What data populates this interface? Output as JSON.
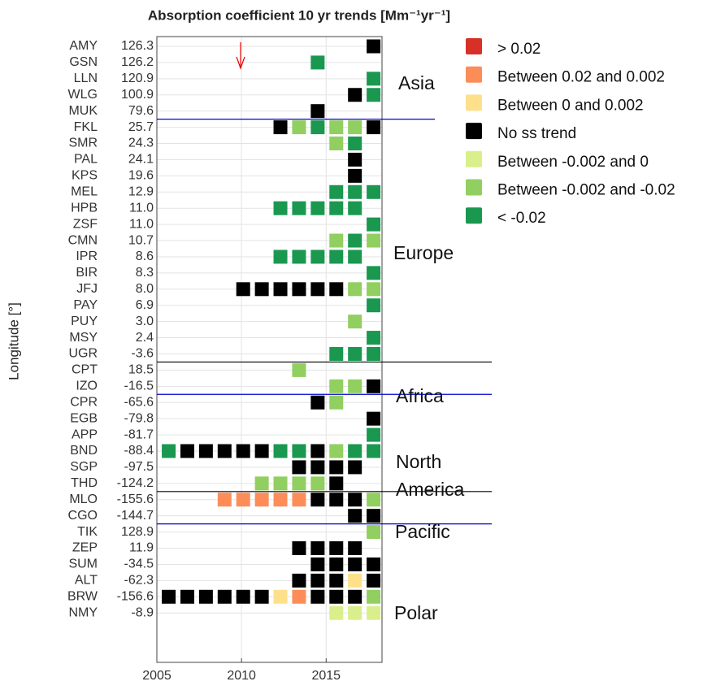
{
  "chart_data": {
    "type": "heatmap",
    "title": "Absorption coefficient 10 yr trends [Mm⁻¹yr⁻¹]",
    "ylabel": "Longitude [°]",
    "x": [
      2005.7,
      2006.8,
      2007.9,
      2009.0,
      2010.1,
      2011.2,
      2012.3,
      2013.4,
      2014.5,
      2015.6,
      2016.7,
      2017.8
    ],
    "xlim": [
      2005,
      2018.3
    ],
    "xticks": [
      2005,
      2010,
      2015
    ],
    "grid": true,
    "legend": [
      {
        "label": "> 0.02",
        "color": "#d73027"
      },
      {
        "label": "Between 0.02 and 0.002",
        "color": "#fc8d59"
      },
      {
        "label": "Between 0 and 0.002",
        "color": "#fee08b"
      },
      {
        "label": "No ss trend",
        "color": "#000000"
      },
      {
        "label": "Between -0.002 and 0",
        "color": "#d9ef8b"
      },
      {
        "label": "Between -0.002 and -0.02",
        "color": "#91cf60"
      },
      {
        "label": "< -0.02",
        "color": "#1a9850"
      }
    ],
    "regions": [
      [
        "Asia"
      ],
      [
        "Europe"
      ],
      [
        "Africa"
      ],
      [
        "North",
        "America"
      ],
      [
        "Pacific"
      ],
      [
        "Polar"
      ]
    ],
    "rows": [
      {
        "station": "AMY",
        "longitude": "126.3",
        "cells": [
          null,
          null,
          null,
          null,
          null,
          null,
          null,
          null,
          null,
          null,
          null,
          3
        ]
      },
      {
        "station": "GSN",
        "longitude": "126.2",
        "cells": [
          null,
          null,
          null,
          null,
          null,
          null,
          null,
          null,
          6,
          null,
          null,
          null
        ]
      },
      {
        "station": "LLN",
        "longitude": "120.9",
        "cells": [
          null,
          null,
          null,
          null,
          null,
          null,
          null,
          null,
          null,
          null,
          null,
          6
        ]
      },
      {
        "station": "WLG",
        "longitude": "100.9",
        "cells": [
          null,
          null,
          null,
          null,
          null,
          null,
          null,
          null,
          null,
          null,
          3,
          6
        ]
      },
      {
        "station": "MUK",
        "longitude": "79.6",
        "cells": [
          null,
          null,
          null,
          null,
          null,
          null,
          null,
          null,
          3,
          null,
          null,
          null
        ]
      },
      {
        "station": "FKL",
        "longitude": "25.7",
        "cells": [
          null,
          null,
          null,
          null,
          null,
          null,
          3,
          5,
          6,
          5,
          5,
          3
        ]
      },
      {
        "station": "SMR",
        "longitude": "24.3",
        "cells": [
          null,
          null,
          null,
          null,
          null,
          null,
          null,
          null,
          null,
          5,
          6,
          null
        ]
      },
      {
        "station": "PAL",
        "longitude": "24.1",
        "cells": [
          null,
          null,
          null,
          null,
          null,
          null,
          null,
          null,
          null,
          null,
          3,
          null
        ]
      },
      {
        "station": "KPS",
        "longitude": "19.6",
        "cells": [
          null,
          null,
          null,
          null,
          null,
          null,
          null,
          null,
          null,
          null,
          3,
          null
        ]
      },
      {
        "station": "MEL",
        "longitude": "12.9",
        "cells": [
          null,
          null,
          null,
          null,
          null,
          null,
          null,
          null,
          null,
          6,
          6,
          6
        ]
      },
      {
        "station": "HPB",
        "longitude": "11.0",
        "cells": [
          null,
          null,
          null,
          null,
          null,
          null,
          6,
          6,
          6,
          6,
          6,
          null
        ]
      },
      {
        "station": "ZSF",
        "longitude": "11.0",
        "cells": [
          null,
          null,
          null,
          null,
          null,
          null,
          null,
          null,
          null,
          null,
          null,
          6
        ]
      },
      {
        "station": "CMN",
        "longitude": "10.7",
        "cells": [
          null,
          null,
          null,
          null,
          null,
          null,
          null,
          null,
          null,
          5,
          6,
          5
        ]
      },
      {
        "station": "IPR",
        "longitude": "8.6",
        "cells": [
          null,
          null,
          null,
          null,
          null,
          null,
          6,
          6,
          6,
          6,
          6,
          null
        ]
      },
      {
        "station": "BIR",
        "longitude": "8.3",
        "cells": [
          null,
          null,
          null,
          null,
          null,
          null,
          null,
          null,
          null,
          null,
          null,
          6
        ]
      },
      {
        "station": "JFJ",
        "longitude": "8.0",
        "cells": [
          null,
          null,
          null,
          null,
          3,
          3,
          3,
          3,
          3,
          3,
          5,
          5
        ]
      },
      {
        "station": "PAY",
        "longitude": "6.9",
        "cells": [
          null,
          null,
          null,
          null,
          null,
          null,
          null,
          null,
          null,
          null,
          null,
          6
        ]
      },
      {
        "station": "PUY",
        "longitude": "3.0",
        "cells": [
          null,
          null,
          null,
          null,
          null,
          null,
          null,
          null,
          null,
          null,
          5,
          null
        ]
      },
      {
        "station": "MSY",
        "longitude": "2.4",
        "cells": [
          null,
          null,
          null,
          null,
          null,
          null,
          null,
          null,
          null,
          null,
          null,
          6
        ]
      },
      {
        "station": "UGR",
        "longitude": "-3.6",
        "cells": [
          null,
          null,
          null,
          null,
          null,
          null,
          null,
          null,
          null,
          6,
          6,
          6
        ]
      },
      {
        "station": "CPT",
        "longitude": "18.5",
        "cells": [
          null,
          null,
          null,
          null,
          null,
          null,
          null,
          5,
          null,
          null,
          null,
          null
        ]
      },
      {
        "station": "IZO",
        "longitude": "-16.5",
        "cells": [
          null,
          null,
          null,
          null,
          null,
          null,
          null,
          null,
          null,
          5,
          5,
          3
        ]
      },
      {
        "station": "CPR",
        "longitude": "-65.6",
        "cells": [
          null,
          null,
          null,
          null,
          null,
          null,
          null,
          null,
          3,
          5,
          null,
          null
        ]
      },
      {
        "station": "EGB",
        "longitude": "-79.8",
        "cells": [
          null,
          null,
          null,
          null,
          null,
          null,
          null,
          null,
          null,
          null,
          null,
          3
        ]
      },
      {
        "station": "APP",
        "longitude": "-81.7",
        "cells": [
          null,
          null,
          null,
          null,
          null,
          null,
          null,
          null,
          null,
          null,
          null,
          6
        ]
      },
      {
        "station": "BND",
        "longitude": "-88.4",
        "cells": [
          6,
          3,
          3,
          3,
          3,
          3,
          6,
          6,
          3,
          5,
          6,
          6
        ]
      },
      {
        "station": "SGP",
        "longitude": "-97.5",
        "cells": [
          null,
          null,
          null,
          null,
          null,
          null,
          null,
          3,
          3,
          3,
          3,
          null
        ]
      },
      {
        "station": "THD",
        "longitude": "-124.2",
        "cells": [
          null,
          null,
          null,
          null,
          null,
          5,
          5,
          5,
          5,
          3,
          null,
          null
        ]
      },
      {
        "station": "MLO",
        "longitude": "-155.6",
        "cells": [
          null,
          null,
          null,
          1,
          1,
          1,
          1,
          1,
          3,
          3,
          3,
          5
        ]
      },
      {
        "station": "CGO",
        "longitude": "-144.7",
        "cells": [
          null,
          null,
          null,
          null,
          null,
          null,
          null,
          null,
          null,
          null,
          3,
          3
        ]
      },
      {
        "station": "TIK",
        "longitude": "128.9",
        "cells": [
          null,
          null,
          null,
          null,
          null,
          null,
          null,
          null,
          null,
          null,
          null,
          5
        ]
      },
      {
        "station": "ZEP",
        "longitude": "11.9",
        "cells": [
          null,
          null,
          null,
          null,
          null,
          null,
          null,
          3,
          3,
          3,
          3,
          null
        ]
      },
      {
        "station": "SUM",
        "longitude": "-34.5",
        "cells": [
          null,
          null,
          null,
          null,
          null,
          null,
          null,
          null,
          3,
          3,
          3,
          3
        ]
      },
      {
        "station": "ALT",
        "longitude": "-62.3",
        "cells": [
          null,
          null,
          null,
          null,
          null,
          null,
          null,
          3,
          3,
          3,
          2,
          3
        ]
      },
      {
        "station": "BRW",
        "longitude": "-156.6",
        "cells": [
          3,
          3,
          3,
          3,
          3,
          3,
          2,
          1,
          3,
          3,
          3,
          5
        ]
      },
      {
        "station": "NMY",
        "longitude": "-8.9",
        "cells": [
          null,
          null,
          null,
          null,
          null,
          null,
          null,
          null,
          null,
          4,
          4,
          4
        ]
      }
    ]
  }
}
